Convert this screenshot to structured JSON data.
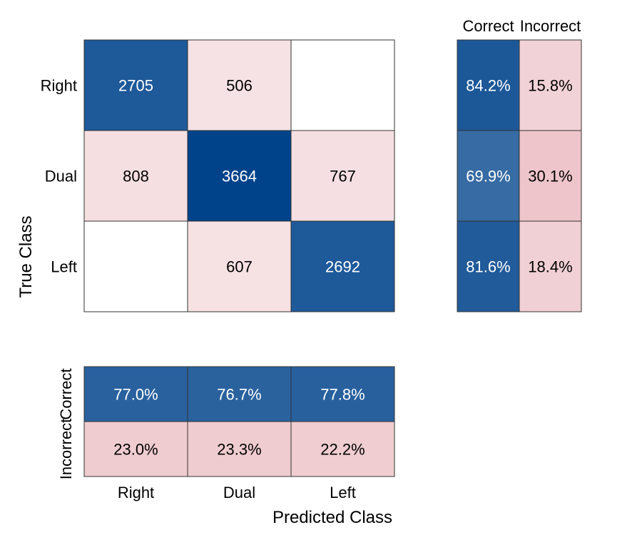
{
  "chart_data": {
    "type": "heatmap",
    "title": "",
    "xlabel": "Predicted Class",
    "ylabel": "True Class",
    "classes": [
      "Right",
      "Dual",
      "Left"
    ],
    "matrix": [
      [
        2705,
        506,
        null
      ],
      [
        808,
        3664,
        767
      ],
      [
        null,
        607,
        2692
      ]
    ],
    "row_summary": {
      "headers": [
        "Correct",
        "Incorrect"
      ],
      "values": [
        [
          "84.2%",
          "15.8%"
        ],
        [
          "69.9%",
          "30.1%"
        ],
        [
          "81.6%",
          "18.4%"
        ]
      ],
      "correct_pct": [
        84.2,
        69.9,
        81.6
      ],
      "incorrect_pct": [
        15.8,
        30.1,
        18.4
      ]
    },
    "column_summary": {
      "headers": [
        "Correct",
        "Incorrect"
      ],
      "values": [
        [
          "77.0%",
          "76.7%",
          "77.8%"
        ],
        [
          "23.0%",
          "23.3%",
          "22.2%"
        ]
      ],
      "correct_pct": [
        77.0,
        76.7,
        77.8
      ],
      "incorrect_pct": [
        23.0,
        23.3,
        22.2
      ]
    },
    "colors": {
      "correct_max": "#00438b",
      "incorrect_max": "#d9868f",
      "background": "#ffffff",
      "grid": "#333333"
    }
  }
}
